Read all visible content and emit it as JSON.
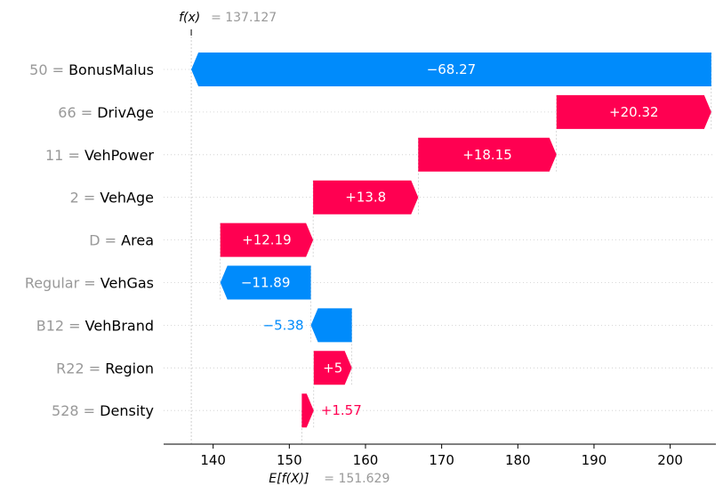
{
  "chart_data": {
    "type": "waterfall",
    "fx_label": "f(x)",
    "fx_value": "= 137.127",
    "fx": 137.127,
    "efx_label": "E[f(X)]",
    "efx_value": "= 151.629",
    "efx": 151.629,
    "xlim": [
      133.5,
      206
    ],
    "x_ticks": [
      {
        "value": 140,
        "label": "140"
      },
      {
        "value": 150,
        "label": "150"
      },
      {
        "value": 160,
        "label": "160"
      },
      {
        "value": 170,
        "label": "170"
      },
      {
        "value": 180,
        "label": "180"
      },
      {
        "value": 190,
        "label": "190"
      },
      {
        "value": 200,
        "label": "200"
      }
    ],
    "features": [
      {
        "value_label": "50 =",
        "name": "BonusMalus",
        "contribution": -68.27,
        "start": 205.397,
        "end": 137.127,
        "label": "−68.27",
        "label_inside": true
      },
      {
        "value_label": "66 =",
        "name": "DrivAge",
        "contribution": 20.32,
        "start": 185.077,
        "end": 205.397,
        "label": "+20.32",
        "label_inside": true
      },
      {
        "value_label": "11 =",
        "name": "VehPower",
        "contribution": 18.15,
        "start": 166.927,
        "end": 185.077,
        "label": "+18.15",
        "label_inside": true
      },
      {
        "value_label": "2 =",
        "name": "VehAge",
        "contribution": 13.8,
        "start": 153.127,
        "end": 166.927,
        "label": "+13.8",
        "label_inside": true
      },
      {
        "value_label": "D =",
        "name": "Area",
        "contribution": 12.19,
        "start": 140.937,
        "end": 153.127,
        "label": "+12.19",
        "label_inside": true
      },
      {
        "value_label": "Regular =",
        "name": "VehGas",
        "contribution": -11.89,
        "start": 152.827,
        "end": 140.937,
        "label": "−11.89",
        "label_inside": true
      },
      {
        "value_label": "B12 =",
        "name": "VehBrand",
        "contribution": -5.38,
        "start": 158.207,
        "end": 152.827,
        "label": "−5.38",
        "label_inside": false
      },
      {
        "value_label": "R22 =",
        "name": "Region",
        "contribution": 5.0,
        "start": 153.207,
        "end": 158.207,
        "label": "+5",
        "label_inside": true
      },
      {
        "value_label": "528 =",
        "name": "Density",
        "contribution": 1.57,
        "start": 151.637,
        "end": 153.207,
        "label": "+1.57",
        "label_inside": false
      }
    ],
    "colors": {
      "positive": "#ff0051",
      "negative": "#008bfb",
      "reference_line": "#bbbbbb",
      "grid": "#cccccc",
      "ref_value_text": "#999999"
    }
  }
}
